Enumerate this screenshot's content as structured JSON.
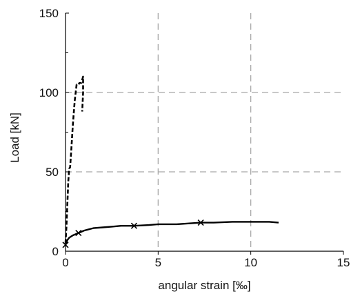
{
  "chart_data": {
    "type": "line",
    "title": "",
    "xlabel": "angular strain [‰]",
    "ylabel": "Load [kN]",
    "xlim": [
      0,
      15
    ],
    "ylim": [
      0,
      150
    ],
    "xticks": [
      0,
      5,
      10,
      15
    ],
    "yticks": [
      0,
      50,
      100,
      150
    ],
    "grid": {
      "vertical": [
        5,
        10
      ],
      "horizontal": [
        50,
        100
      ],
      "style": "dashed"
    },
    "legend": "none",
    "series": [
      {
        "line_style": "dashed",
        "color": "#000000",
        "x": [
          0.0,
          0.05,
          0.1,
          0.15,
          0.2,
          0.25,
          0.3,
          0.4,
          0.5,
          0.6,
          0.7,
          0.75,
          0.85,
          0.9,
          0.95,
          0.95,
          0.9
        ],
        "y": [
          5,
          15,
          30,
          44,
          52,
          53,
          62,
          80,
          95,
          105,
          105,
          106,
          106,
          108,
          110,
          100,
          88
        ]
      },
      {
        "line_style": "solid",
        "marker": "x",
        "color": "#000000",
        "x": [
          0.0,
          0.1,
          0.2,
          0.4,
          0.7,
          1.0,
          1.5,
          2.0,
          2.5,
          3.0,
          3.7,
          4.5,
          5.0,
          6.0,
          7.3,
          8.0,
          9.0,
          10.0,
          11.0,
          11.5
        ],
        "y": [
          4,
          7,
          8.5,
          10,
          11.5,
          13,
          14.5,
          15,
          15.5,
          16,
          16,
          16.5,
          17,
          17,
          18,
          18,
          18.5,
          18.5,
          18.5,
          18
        ],
        "marker_points": [
          {
            "x": 0.0,
            "y": 4
          },
          {
            "x": 0.7,
            "y": 11.5
          },
          {
            "x": 3.7,
            "y": 16
          },
          {
            "x": 7.3,
            "y": 18
          }
        ]
      }
    ]
  }
}
